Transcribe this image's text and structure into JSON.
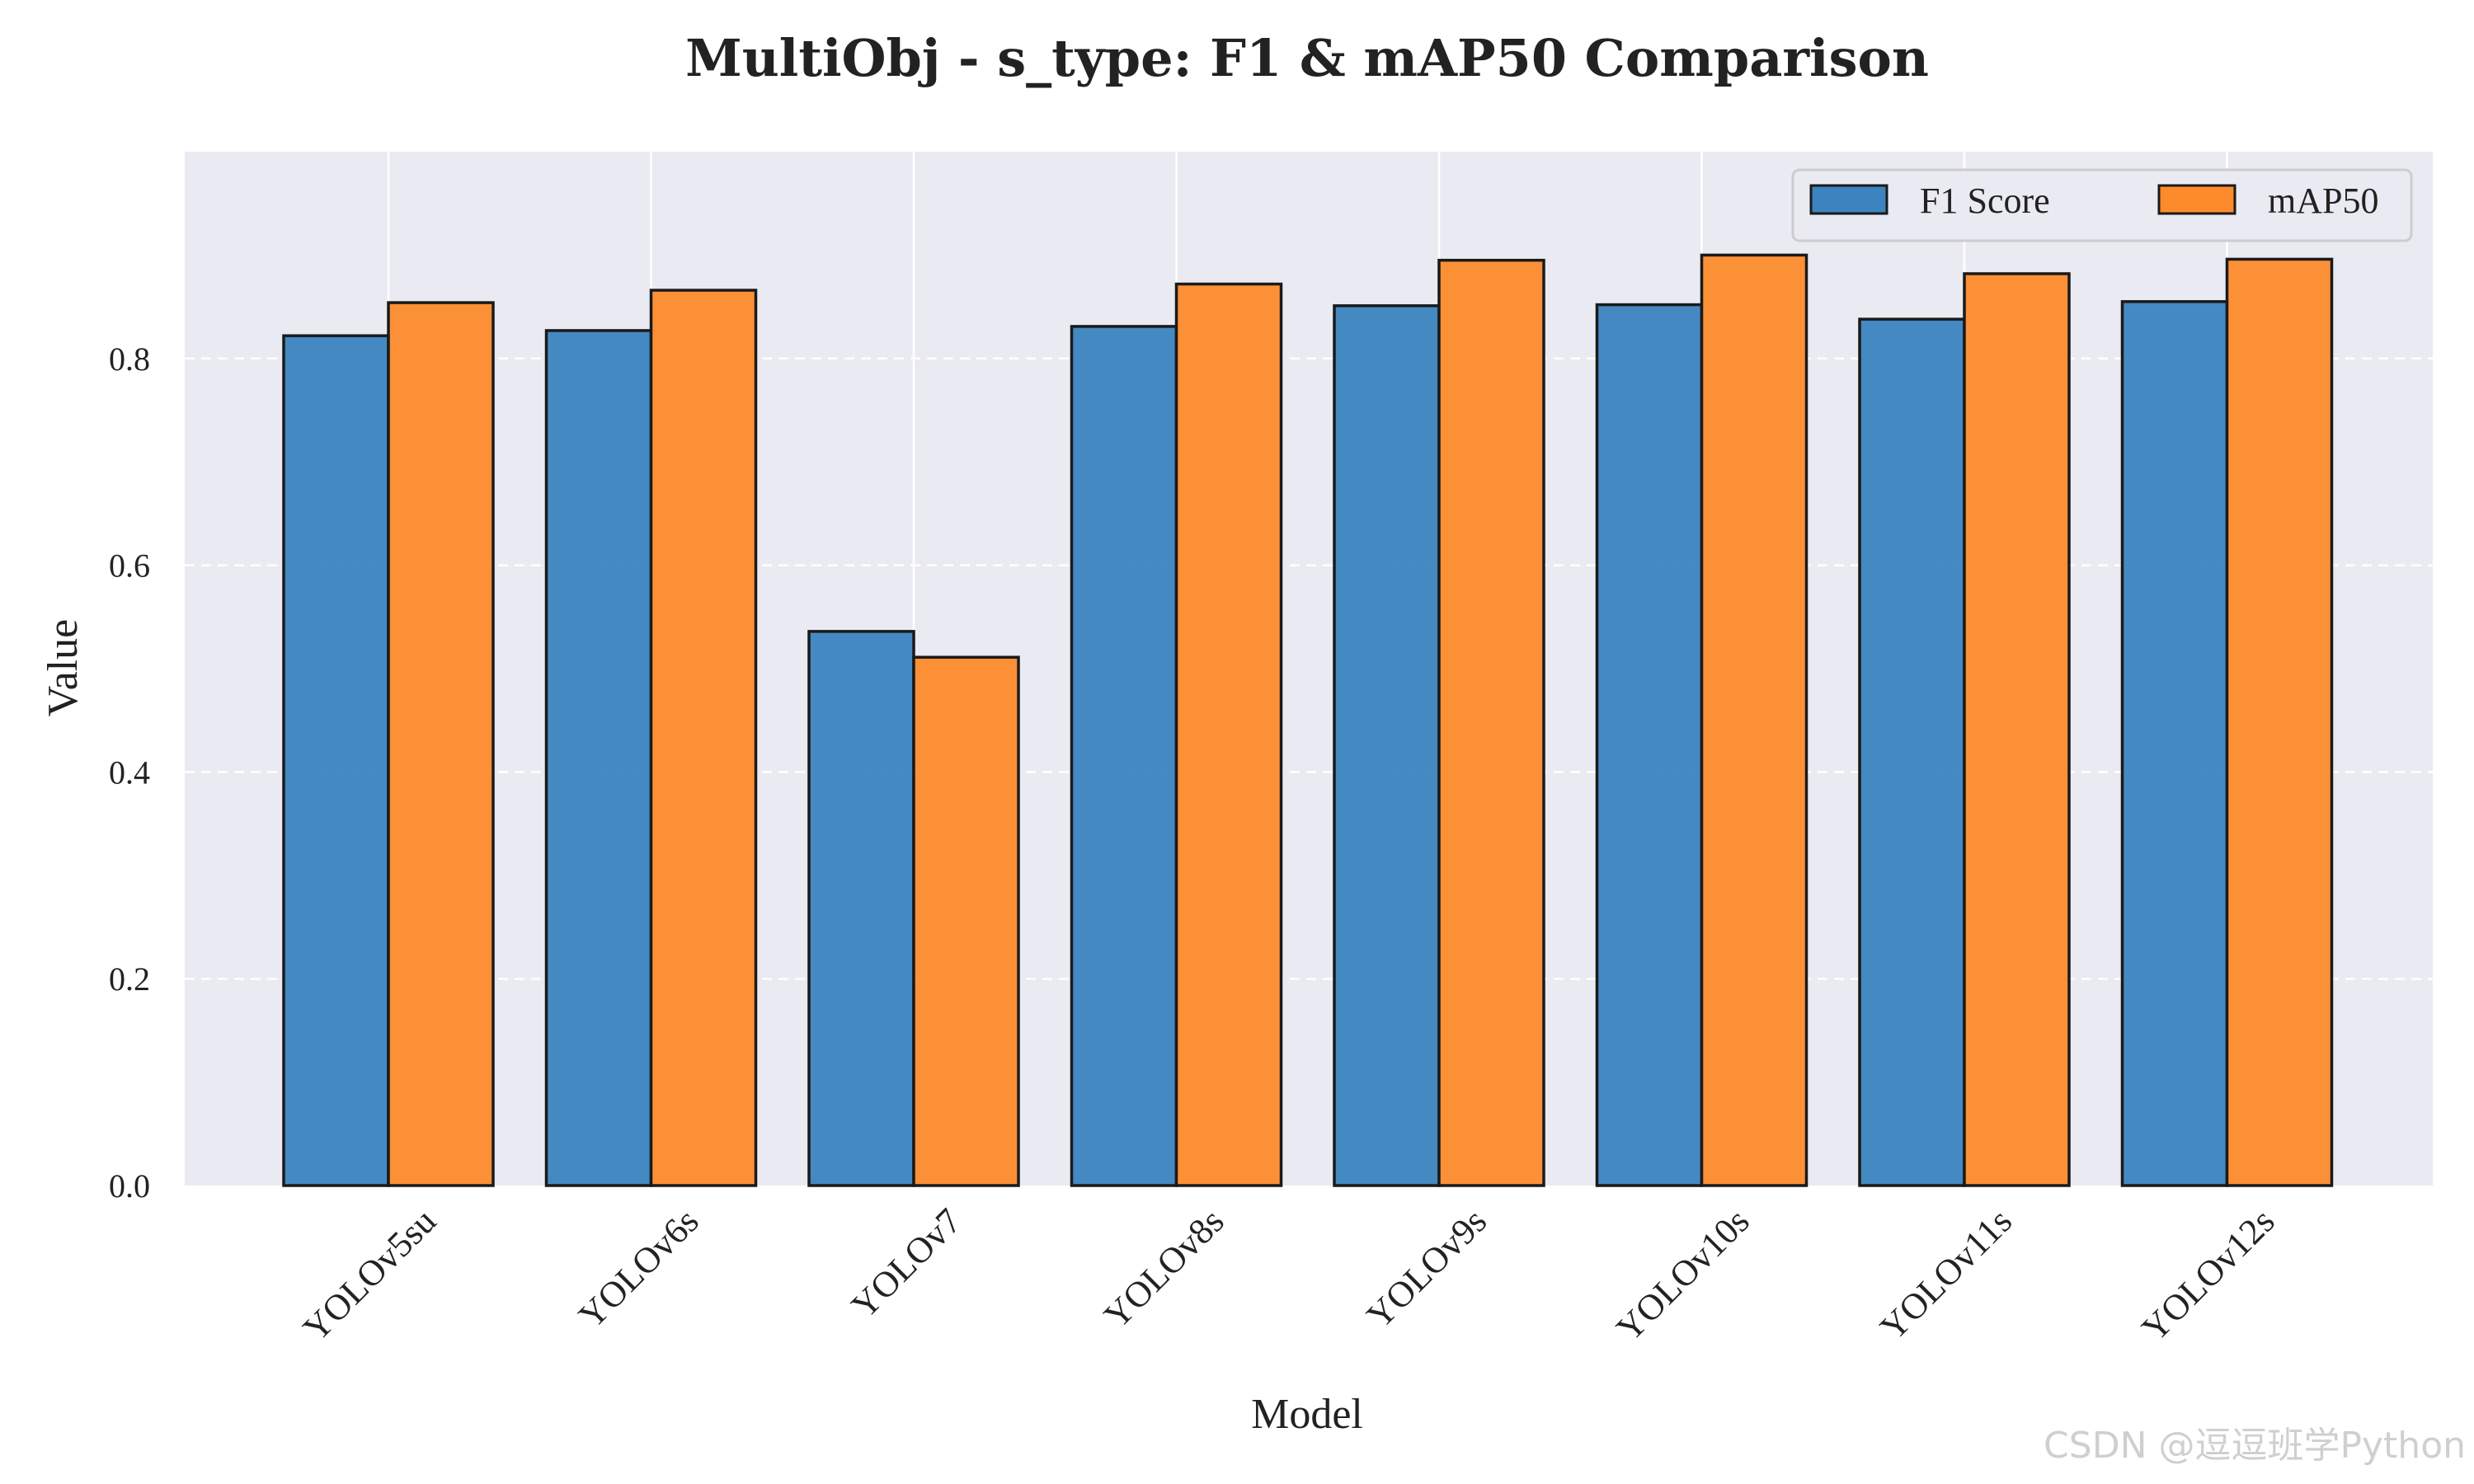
{
  "watermark": "CSDN @逗逗班学Python",
  "chart_data": {
    "type": "bar",
    "title": "MultiObj - s_type: F1 & mAP50 Comparison",
    "xlabel": "Model",
    "ylabel": "Value",
    "ylim": [
      0,
      1.0
    ],
    "yticks": [
      0.0,
      0.2,
      0.4,
      0.6,
      0.8
    ],
    "ytick_labels": [
      "0.0",
      "0.2",
      "0.4",
      "0.6",
      "0.8"
    ],
    "categories": [
      "YOLOv5su",
      "YOLOv6s",
      "YOLOv7",
      "YOLOv8s",
      "YOLOv9s",
      "YOLOv10s",
      "YOLOv11s",
      "YOLOv12s"
    ],
    "series": [
      {
        "name": "F1 Score",
        "color": "#3b84bf",
        "values": [
          0.822,
          0.827,
          0.536,
          0.831,
          0.851,
          0.852,
          0.838,
          0.855
        ]
      },
      {
        "name": "mAP50",
        "color": "#fd8b2c",
        "values": [
          0.854,
          0.866,
          0.511,
          0.872,
          0.895,
          0.9,
          0.882,
          0.896
        ]
      }
    ],
    "legend_position": "top-right",
    "grid": true,
    "background": "#eaeaf2"
  }
}
